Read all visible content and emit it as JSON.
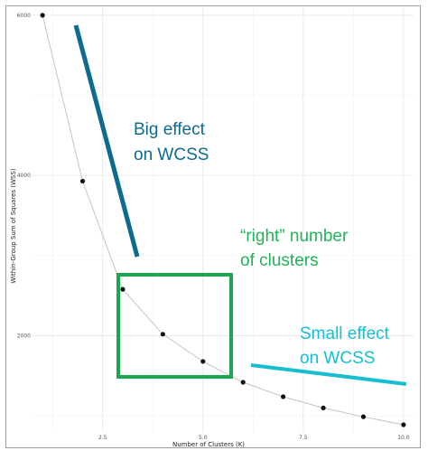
{
  "chart_data": {
    "type": "line",
    "xlabel": "Number of Clusters (K)",
    "ylabel": "Within-Group Sum of Squares (WSS)",
    "x_ticks": [
      "2.5",
      "5.0",
      "7.5",
      "10.0"
    ],
    "y_ticks": [
      "2000",
      "4000",
      "6000"
    ],
    "xlim": [
      0.75,
      10.25
    ],
    "ylim": [
      800,
      6100
    ],
    "grid": true,
    "series": [
      {
        "x": [
          1,
          2,
          3,
          4,
          5,
          6,
          7,
          8,
          9,
          10
        ],
        "y": [
          6000,
          3930,
          2580,
          2020,
          1680,
          1420,
          1240,
          1100,
          990,
          890
        ]
      }
    ],
    "annotations": {
      "big_effect": {
        "line1": "Big effect",
        "line2": "on WCSS",
        "color": "#0e6a8e"
      },
      "right_number": {
        "line1": "“right” number",
        "line2": "of clusters",
        "color": "#22b25a"
      },
      "small_effect": {
        "line1": "Small effect",
        "line2": "on WCSS",
        "color": "#17becf"
      }
    },
    "colors": {
      "series_line": "#c4c4c4",
      "point": "#111111",
      "box": "#1aa84f"
    }
  }
}
